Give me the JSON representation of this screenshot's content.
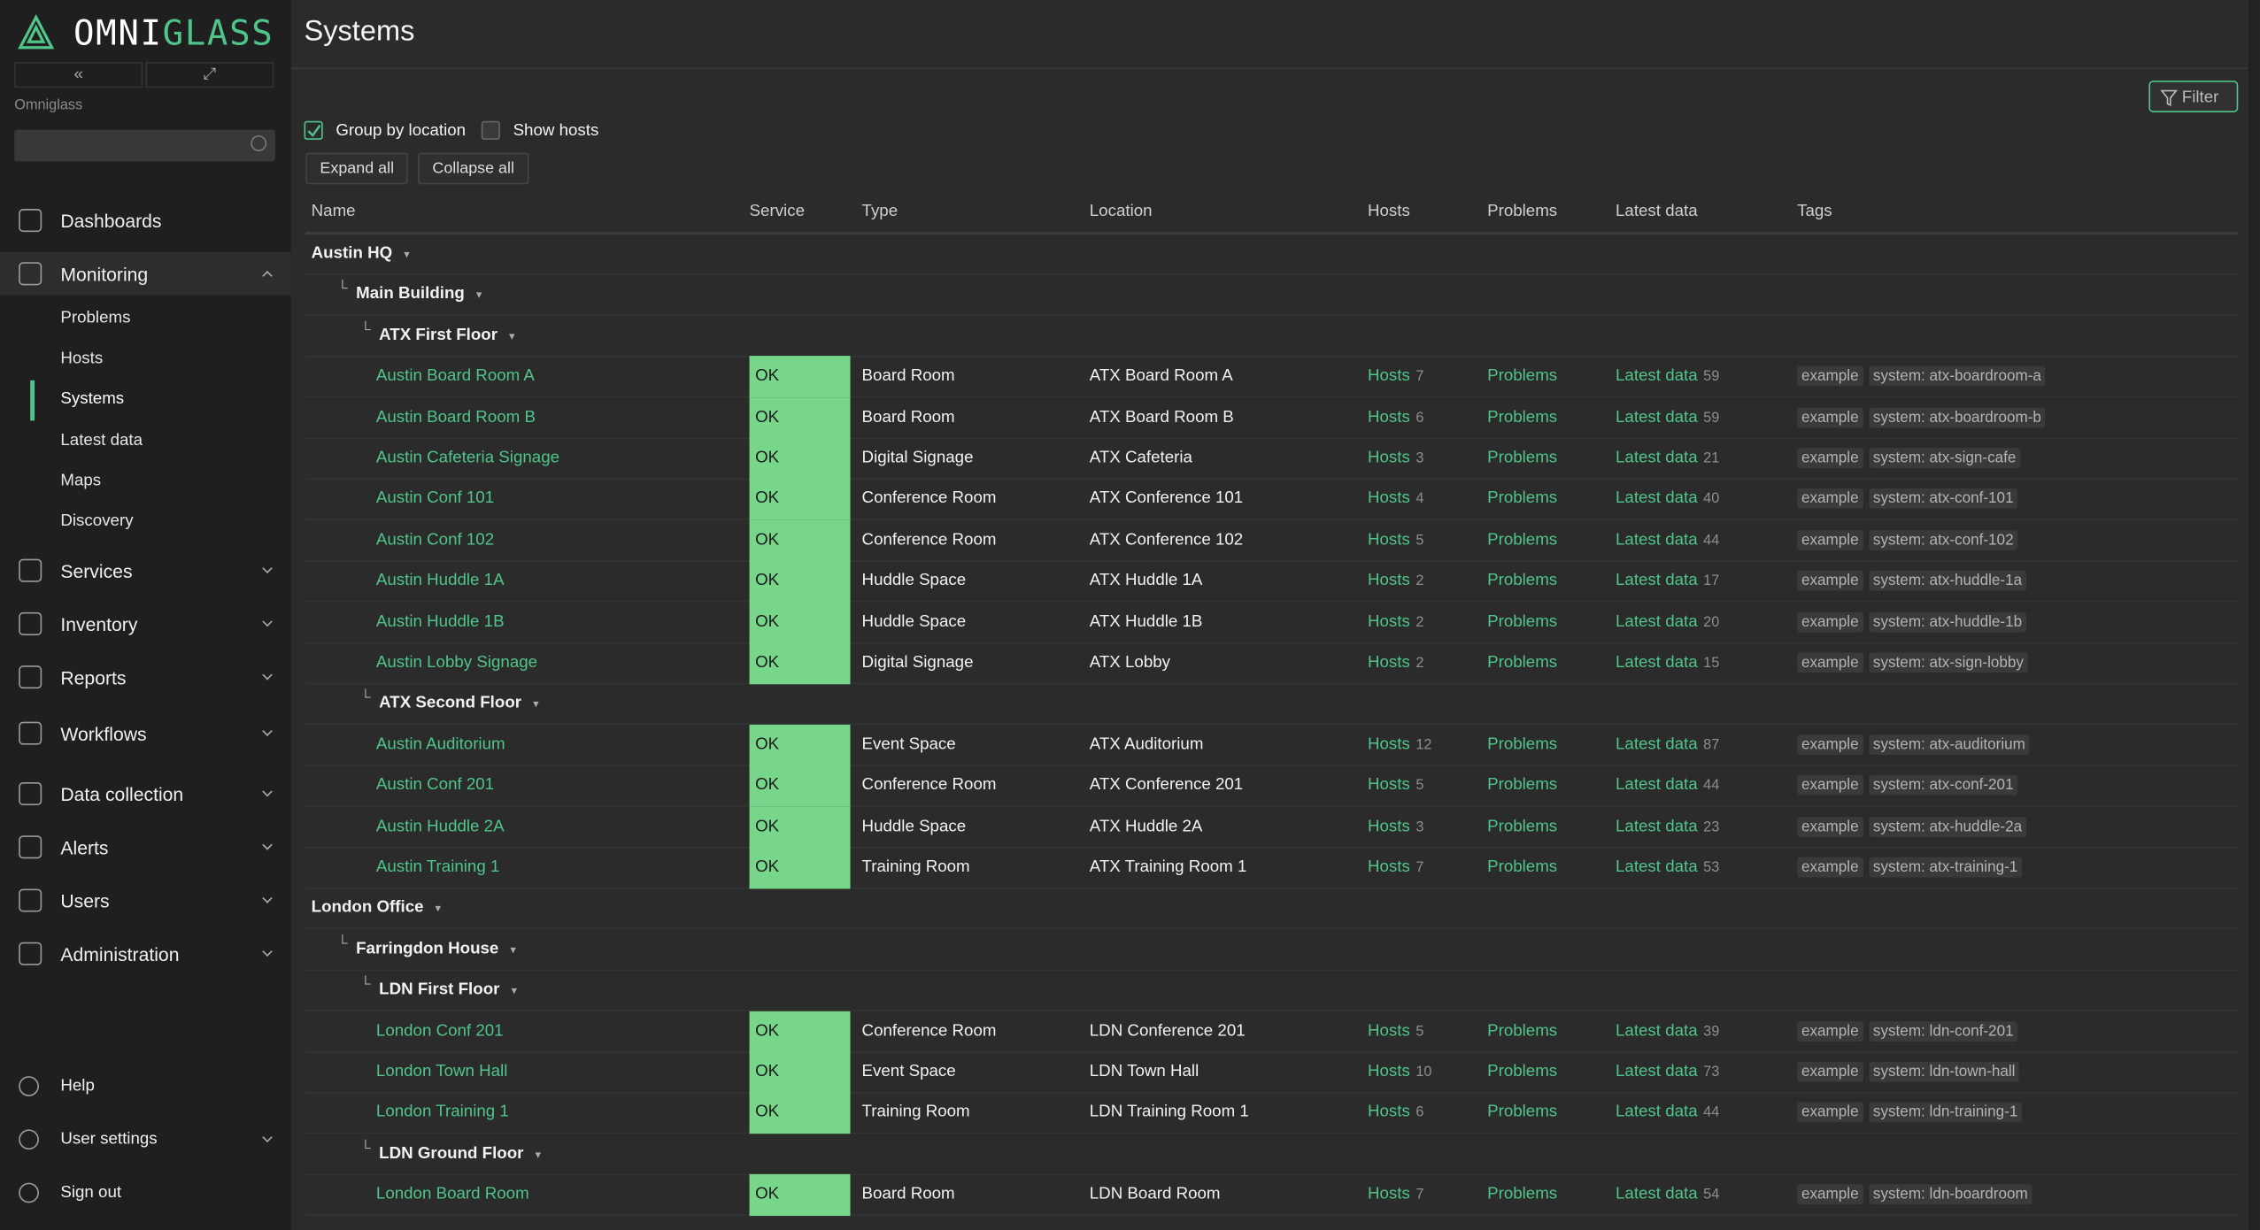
{
  "header": {
    "title": "Systems"
  },
  "sidebar": {
    "logo_a": "OMNI",
    "logo_b": "GLASS",
    "server": "Omniglass",
    "nav": [
      {
        "label": "Dashboards"
      },
      {
        "label": "Monitoring",
        "children": [
          "Problems",
          "Hosts",
          "Systems",
          "Latest data",
          "Maps",
          "Discovery"
        ]
      },
      {
        "label": "Services"
      },
      {
        "label": "Inventory"
      },
      {
        "label": "Reports"
      },
      {
        "label": "Workflows"
      },
      {
        "label": "Data collection"
      },
      {
        "label": "Alerts"
      },
      {
        "label": "Users"
      },
      {
        "label": "Administration"
      }
    ],
    "bottom": [
      "Help",
      "User settings",
      "Sign out"
    ]
  },
  "toolbar": {
    "filter": "Filter",
    "group_by_location": "Group by location",
    "show_hosts": "Show hosts",
    "expand_all": "Expand all",
    "collapse_all": "Collapse all"
  },
  "table": {
    "columns": [
      "Name",
      "Service",
      "Type",
      "Location",
      "Hosts",
      "Problems",
      "Latest data",
      "Tags"
    ],
    "locations": [
      {
        "name": "Austin HQ",
        "buildings": [
          {
            "name": "Main Building",
            "floors": [
              {
                "name": "ATX First Floor",
                "systems": [
                  {
                    "name": "Austin Board Room A",
                    "service": "OK",
                    "type": "Board Room",
                    "location": "ATX Board Room A",
                    "hosts": [
                      "Hosts",
                      7
                    ],
                    "problems": "Problems",
                    "latest": [
                      "Latest data",
                      59
                    ],
                    "tags": [
                      "example",
                      "system: atx-boardroom-a"
                    ]
                  },
                  {
                    "name": "Austin Board Room B",
                    "service": "OK",
                    "type": "Board Room",
                    "location": "ATX Board Room B",
                    "hosts": [
                      "Hosts",
                      6
                    ],
                    "problems": "Problems",
                    "latest": [
                      "Latest data",
                      59
                    ],
                    "tags": [
                      "example",
                      "system: atx-boardroom-b"
                    ]
                  },
                  {
                    "name": "Austin Cafeteria Signage",
                    "service": "OK",
                    "type": "Digital Signage",
                    "location": "ATX Cafeteria",
                    "hosts": [
                      "Hosts",
                      3
                    ],
                    "problems": "Problems",
                    "latest": [
                      "Latest data",
                      21
                    ],
                    "tags": [
                      "example",
                      "system: atx-sign-cafe"
                    ]
                  },
                  {
                    "name": "Austin Conf 101",
                    "service": "OK",
                    "type": "Conference Room",
                    "location": "ATX Conference 101",
                    "hosts": [
                      "Hosts",
                      4
                    ],
                    "problems": "Problems",
                    "latest": [
                      "Latest data",
                      40
                    ],
                    "tags": [
                      "example",
                      "system: atx-conf-101"
                    ]
                  },
                  {
                    "name": "Austin Conf 102",
                    "service": "OK",
                    "type": "Conference Room",
                    "location": "ATX Conference 102",
                    "hosts": [
                      "Hosts",
                      5
                    ],
                    "problems": "Problems",
                    "latest": [
                      "Latest data",
                      44
                    ],
                    "tags": [
                      "example",
                      "system: atx-conf-102"
                    ]
                  },
                  {
                    "name": "Austin Huddle 1A",
                    "service": "OK",
                    "type": "Huddle Space",
                    "location": "ATX Huddle 1A",
                    "hosts": [
                      "Hosts",
                      2
                    ],
                    "problems": "Problems",
                    "latest": [
                      "Latest data",
                      17
                    ],
                    "tags": [
                      "example",
                      "system: atx-huddle-1a"
                    ]
                  },
                  {
                    "name": "Austin Huddle 1B",
                    "service": "OK",
                    "type": "Huddle Space",
                    "location": "ATX Huddle 1B",
                    "hosts": [
                      "Hosts",
                      2
                    ],
                    "problems": "Problems",
                    "latest": [
                      "Latest data",
                      20
                    ],
                    "tags": [
                      "example",
                      "system: atx-huddle-1b"
                    ]
                  },
                  {
                    "name": "Austin Lobby Signage",
                    "service": "OK",
                    "type": "Digital Signage",
                    "location": "ATX Lobby",
                    "hosts": [
                      "Hosts",
                      2
                    ],
                    "problems": "Problems",
                    "latest": [
                      "Latest data",
                      15
                    ],
                    "tags": [
                      "example",
                      "system: atx-sign-lobby"
                    ]
                  }
                ]
              },
              {
                "name": "ATX Second Floor",
                "systems": [
                  {
                    "name": "Austin Auditorium",
                    "service": "OK",
                    "type": "Event Space",
                    "location": "ATX Auditorium",
                    "hosts": [
                      "Hosts",
                      12
                    ],
                    "problems": "Problems",
                    "latest": [
                      "Latest data",
                      87
                    ],
                    "tags": [
                      "example",
                      "system: atx-auditorium"
                    ]
                  },
                  {
                    "name": "Austin Conf 201",
                    "service": "OK",
                    "type": "Conference Room",
                    "location": "ATX Conference 201",
                    "hosts": [
                      "Hosts",
                      5
                    ],
                    "problems": "Problems",
                    "latest": [
                      "Latest data",
                      44
                    ],
                    "tags": [
                      "example",
                      "system: atx-conf-201"
                    ]
                  },
                  {
                    "name": "Austin Huddle 2A",
                    "service": "OK",
                    "type": "Huddle Space",
                    "location": "ATX Huddle 2A",
                    "hosts": [
                      "Hosts",
                      3
                    ],
                    "problems": "Problems",
                    "latest": [
                      "Latest data",
                      23
                    ],
                    "tags": [
                      "example",
                      "system: atx-huddle-2a"
                    ]
                  },
                  {
                    "name": "Austin Training 1",
                    "service": "OK",
                    "type": "Training Room",
                    "location": "ATX Training Room 1",
                    "hosts": [
                      "Hosts",
                      7
                    ],
                    "problems": "Problems",
                    "latest": [
                      "Latest data",
                      53
                    ],
                    "tags": [
                      "example",
                      "system: atx-training-1"
                    ]
                  }
                ]
              }
            ]
          }
        ]
      },
      {
        "name": "London Office",
        "buildings": [
          {
            "name": "Farringdon House",
            "floors": [
              {
                "name": "LDN First Floor",
                "systems": [
                  {
                    "name": "London Conf 201",
                    "service": "OK",
                    "type": "Conference Room",
                    "location": "LDN Conference 201",
                    "hosts": [
                      "Hosts",
                      5
                    ],
                    "problems": "Problems",
                    "latest": [
                      "Latest data",
                      39
                    ],
                    "tags": [
                      "example",
                      "system: ldn-conf-201"
                    ]
                  },
                  {
                    "name": "London Town Hall",
                    "service": "OK",
                    "type": "Event Space",
                    "location": "LDN Town Hall",
                    "hosts": [
                      "Hosts",
                      10
                    ],
                    "problems": "Problems",
                    "latest": [
                      "Latest data",
                      73
                    ],
                    "tags": [
                      "example",
                      "system: ldn-town-hall"
                    ]
                  },
                  {
                    "name": "London Training 1",
                    "service": "OK",
                    "type": "Training Room",
                    "location": "LDN Training Room 1",
                    "hosts": [
                      "Hosts",
                      6
                    ],
                    "problems": "Problems",
                    "latest": [
                      "Latest data",
                      44
                    ],
                    "tags": [
                      "example",
                      "system: ldn-training-1"
                    ]
                  }
                ]
              },
              {
                "name": "LDN Ground Floor",
                "systems": [
                  {
                    "name": "London Board Room",
                    "service": "OK",
                    "type": "Board Room",
                    "location": "LDN Board Room",
                    "hosts": [
                      "Hosts",
                      7
                    ],
                    "problems": "Problems",
                    "latest": [
                      "Latest data",
                      54
                    ],
                    "tags": [
                      "example",
                      "system: ldn-boardroom"
                    ]
                  }
                ]
              }
            ]
          }
        ]
      }
    ]
  }
}
